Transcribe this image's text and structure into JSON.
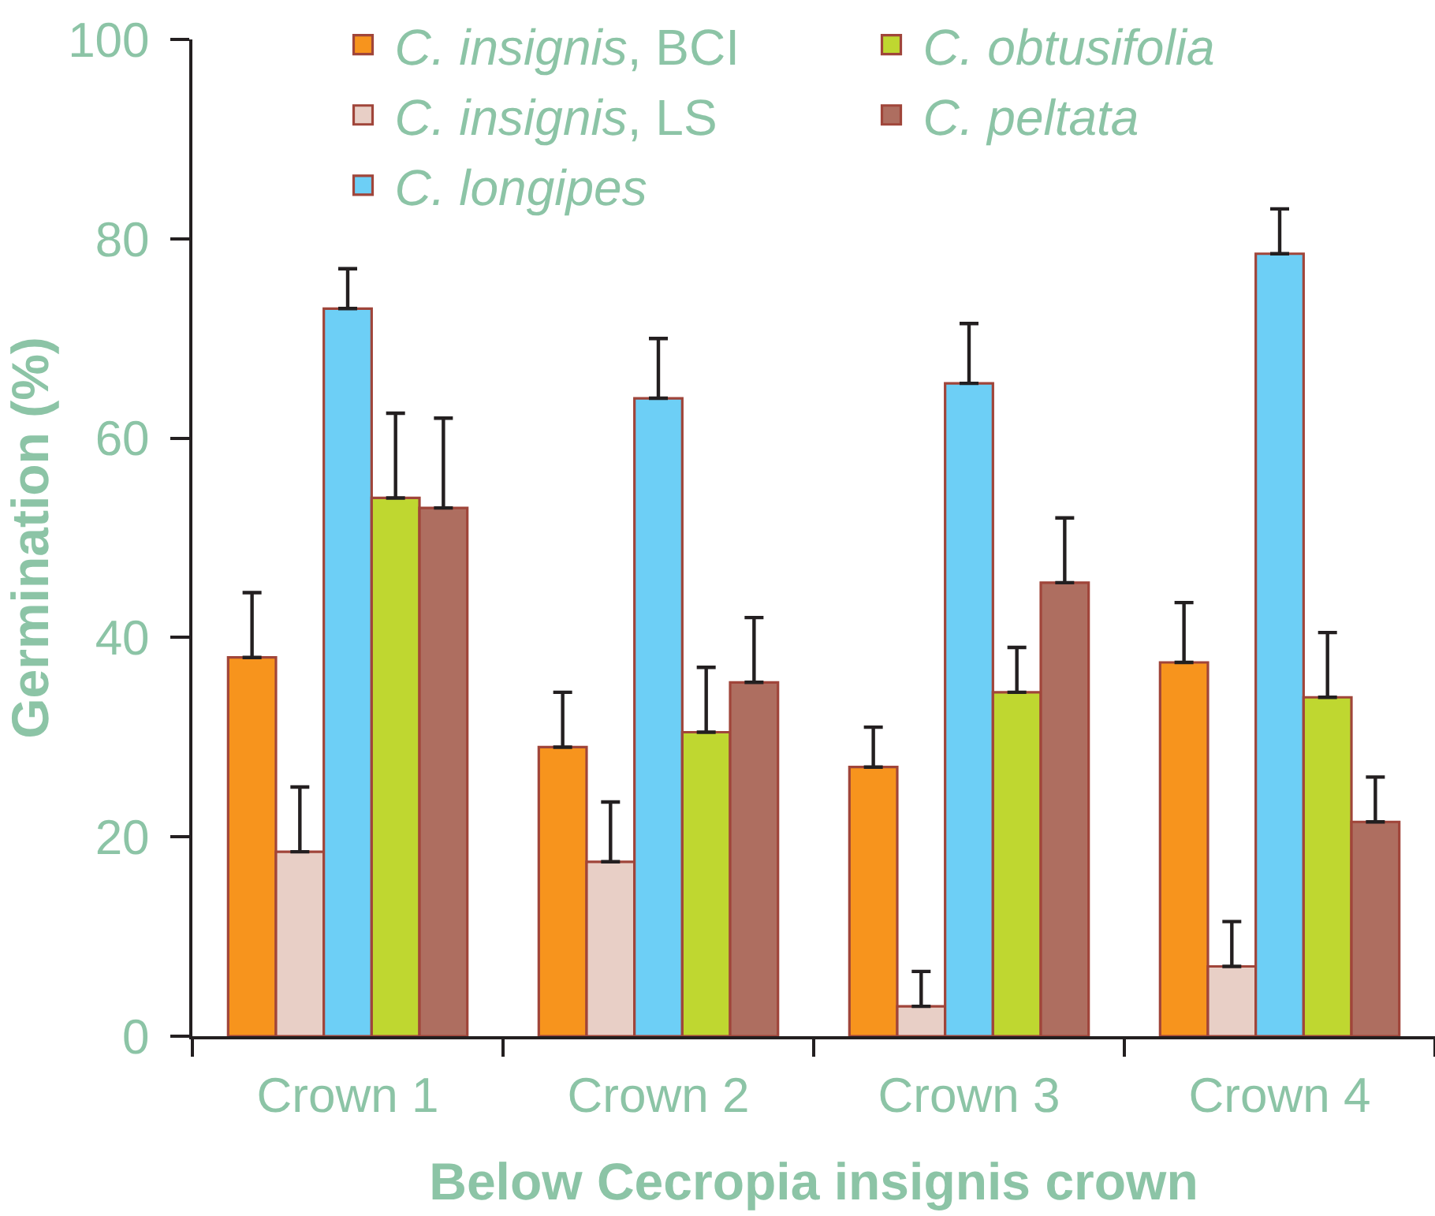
{
  "chart_data": {
    "type": "bar",
    "xlabel": "Below Cecropia insignis crown",
    "ylabel": "Germination (%)",
    "categories": [
      "Crown 1",
      "Crown 2",
      "Crown 3",
      "Crown 4"
    ],
    "series": [
      {
        "name": "C. insignis, BCI",
        "color": "#f7941d",
        "values": [
          38,
          29,
          27,
          37.5
        ],
        "errors": [
          [
            38,
            44.5
          ],
          [
            29,
            34.5
          ],
          [
            27,
            31
          ],
          [
            37.5,
            43.5
          ]
        ]
      },
      {
        "name": "C. insignis, LS",
        "color": "#e8cfc6",
        "values": [
          18.5,
          17.5,
          3,
          7
        ],
        "errors": [
          [
            18.5,
            25
          ],
          [
            17.5,
            23.5
          ],
          [
            3,
            6.5
          ],
          [
            7,
            11.5
          ]
        ]
      },
      {
        "name": "C. longipes",
        "color": "#6dcff6",
        "values": [
          73,
          64,
          65.5,
          78.5
        ],
        "errors": [
          [
            73,
            77
          ],
          [
            64,
            70
          ],
          [
            65.5,
            71.5
          ],
          [
            78.5,
            83
          ]
        ]
      },
      {
        "name": "C. obtusifolia",
        "color": "#bfd730",
        "values": [
          54,
          30.5,
          34.5,
          34
        ],
        "errors": [
          [
            54,
            62.5
          ],
          [
            30.5,
            37
          ],
          [
            34.5,
            39
          ],
          [
            34,
            40.5
          ]
        ]
      },
      {
        "name": "C. peltata",
        "color": "#ae6e60",
        "values": [
          53,
          35.5,
          45.5,
          21.5
        ],
        "errors": [
          [
            53,
            62
          ],
          [
            35.5,
            42
          ],
          [
            45.5,
            52
          ],
          [
            21.5,
            26
          ]
        ]
      }
    ],
    "ylim": [
      0,
      100
    ],
    "yticks": [
      0,
      20,
      40,
      60,
      80,
      100
    ],
    "legend": "top"
  }
}
